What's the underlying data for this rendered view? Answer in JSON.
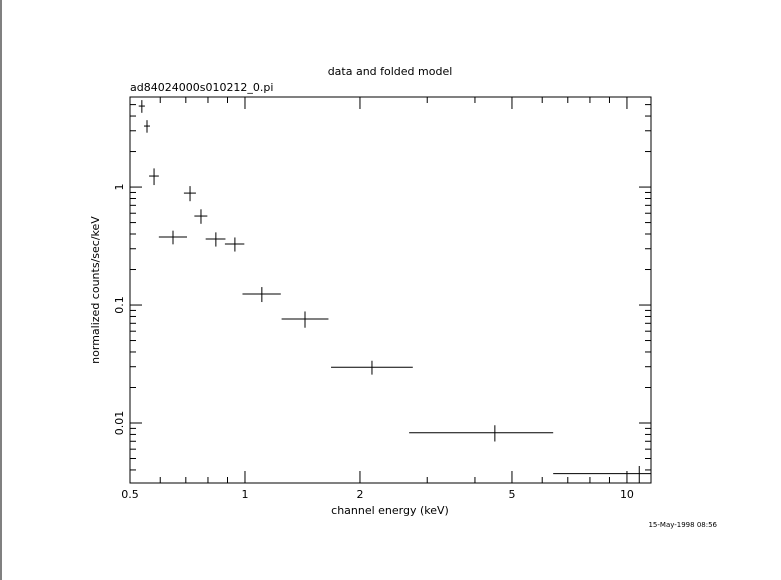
{
  "chart_data": {
    "type": "errorbar",
    "title": "data and folded model",
    "subtitle": "ad84024000s010212_0.pi",
    "x_label": "channel energy (keV)",
    "y_label": "normalized counts/sec/keV",
    "timestamp": "15-May-1998 08:56",
    "log_x": true,
    "log_y": true,
    "color": "#000000",
    "x": [
      0.537,
      0.554,
      0.578,
      0.648,
      0.718,
      0.767,
      0.839,
      0.941,
      1.107,
      1.436,
      2.15,
      4.51,
      10.77
    ],
    "x_lo": [
      0.527,
      0.544,
      0.561,
      0.595,
      0.692,
      0.737,
      0.789,
      0.886,
      0.985,
      1.247,
      1.68,
      2.69,
      6.41
    ],
    "x_hi": [
      0.547,
      0.564,
      0.595,
      0.705,
      0.744,
      0.797,
      0.889,
      0.996,
      1.241,
      1.654,
      2.75,
      6.41,
      11.56
    ],
    "values": [
      4.86,
      3.29,
      1.24,
      0.377,
      0.889,
      0.568,
      0.363,
      0.329,
      0.124,
      0.0762,
      0.0297,
      0.00827,
      0.00372
    ],
    "yerr": [
      0.6,
      0.4,
      0.2,
      0.05,
      0.13,
      0.08,
      0.05,
      0.045,
      0.018,
      0.012,
      0.004,
      0.0013,
      0.0006
    ],
    "xlim": [
      0.5,
      11.56
    ],
    "ylim": [
      0.0031,
      5.8
    ],
    "xticks": [
      0.5,
      1,
      2,
      5,
      10
    ],
    "xminor": [
      0.6,
      0.7,
      0.8,
      0.9,
      3,
      4,
      6,
      7,
      8,
      9
    ],
    "yticks": [
      0.01,
      0.1,
      1
    ],
    "yminor": [
      0.004,
      0.005,
      0.006,
      0.007,
      0.008,
      0.009,
      0.02,
      0.03,
      0.04,
      0.05,
      0.06,
      0.07,
      0.08,
      0.09,
      0.2,
      0.3,
      0.4,
      0.5,
      0.6,
      0.7,
      0.8,
      0.9,
      2,
      3,
      4,
      5
    ]
  }
}
